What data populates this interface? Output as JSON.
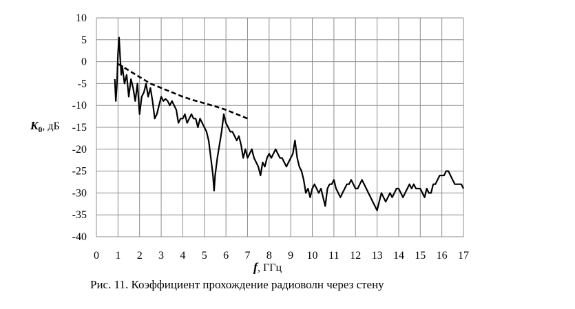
{
  "chart_data": {
    "type": "line",
    "xlabel": {
      "symbol": "f",
      "unit": ", ГГц"
    },
    "ylabel": {
      "symbol": "K",
      "subscript": "0",
      "unit": ", дБ"
    },
    "xlim": [
      0,
      17
    ],
    "ylim": [
      -40,
      10
    ],
    "x_ticks": [
      "0",
      "1",
      "2",
      "3",
      "4",
      "5",
      "6",
      "7",
      "8",
      "9",
      "10",
      "11",
      "12",
      "13",
      "14",
      "15",
      "16",
      "17"
    ],
    "y_ticks": [
      "10",
      "5",
      "0",
      "-5",
      "-10",
      "-15",
      "-20",
      "-25",
      "-30",
      "-35",
      "-40"
    ],
    "grid": true,
    "series": [
      {
        "style": "solid",
        "color": "#000000",
        "points": [
          [
            0.85,
            -4
          ],
          [
            0.9,
            -9
          ],
          [
            0.95,
            -5
          ],
          [
            1.0,
            2
          ],
          [
            1.05,
            5.5
          ],
          [
            1.1,
            1
          ],
          [
            1.15,
            -3
          ],
          [
            1.2,
            -1
          ],
          [
            1.3,
            -5
          ],
          [
            1.4,
            -3
          ],
          [
            1.5,
            -8
          ],
          [
            1.6,
            -4
          ],
          [
            1.7,
            -6
          ],
          [
            1.8,
            -9
          ],
          [
            1.9,
            -5
          ],
          [
            2.0,
            -12
          ],
          [
            2.1,
            -8
          ],
          [
            2.2,
            -7
          ],
          [
            2.3,
            -5
          ],
          [
            2.4,
            -8
          ],
          [
            2.5,
            -6
          ],
          [
            2.6,
            -9
          ],
          [
            2.7,
            -13
          ],
          [
            2.8,
            -12
          ],
          [
            2.9,
            -10
          ],
          [
            3.0,
            -8
          ],
          [
            3.1,
            -9
          ],
          [
            3.2,
            -8.5
          ],
          [
            3.3,
            -9
          ],
          [
            3.4,
            -10
          ],
          [
            3.5,
            -9
          ],
          [
            3.6,
            -10
          ],
          [
            3.7,
            -11
          ],
          [
            3.8,
            -14
          ],
          [
            3.9,
            -13
          ],
          [
            4.0,
            -13
          ],
          [
            4.1,
            -12
          ],
          [
            4.2,
            -14
          ],
          [
            4.3,
            -13
          ],
          [
            4.4,
            -12
          ],
          [
            4.5,
            -13
          ],
          [
            4.6,
            -13
          ],
          [
            4.7,
            -15
          ],
          [
            4.8,
            -13
          ],
          [
            4.9,
            -14
          ],
          [
            5.0,
            -15
          ],
          [
            5.1,
            -16
          ],
          [
            5.2,
            -18
          ],
          [
            5.3,
            -22
          ],
          [
            5.4,
            -26
          ],
          [
            5.45,
            -29.5
          ],
          [
            5.5,
            -26
          ],
          [
            5.6,
            -22
          ],
          [
            5.7,
            -19
          ],
          [
            5.8,
            -16
          ],
          [
            5.9,
            -12
          ],
          [
            6.0,
            -14
          ],
          [
            6.1,
            -15
          ],
          [
            6.2,
            -16
          ],
          [
            6.3,
            -16
          ],
          [
            6.4,
            -17
          ],
          [
            6.5,
            -18
          ],
          [
            6.6,
            -17
          ],
          [
            6.7,
            -19
          ],
          [
            6.8,
            -22
          ],
          [
            6.9,
            -20
          ],
          [
            7.0,
            -22
          ],
          [
            7.1,
            -21
          ],
          [
            7.2,
            -20
          ],
          [
            7.3,
            -22
          ],
          [
            7.4,
            -23
          ],
          [
            7.5,
            -24
          ],
          [
            7.6,
            -26
          ],
          [
            7.7,
            -23
          ],
          [
            7.8,
            -24
          ],
          [
            7.9,
            -22
          ],
          [
            8.0,
            -21
          ],
          [
            8.1,
            -22
          ],
          [
            8.2,
            -21
          ],
          [
            8.3,
            -20
          ],
          [
            8.4,
            -21
          ],
          [
            8.5,
            -22
          ],
          [
            8.6,
            -22
          ],
          [
            8.7,
            -23
          ],
          [
            8.8,
            -24
          ],
          [
            8.9,
            -23
          ],
          [
            9.0,
            -22
          ],
          [
            9.1,
            -21
          ],
          [
            9.2,
            -18
          ],
          [
            9.3,
            -22
          ],
          [
            9.4,
            -24
          ],
          [
            9.5,
            -25
          ],
          [
            9.6,
            -27
          ],
          [
            9.7,
            -30
          ],
          [
            9.8,
            -29
          ],
          [
            9.9,
            -31
          ],
          [
            10.0,
            -29
          ],
          [
            10.1,
            -28
          ],
          [
            10.2,
            -29
          ],
          [
            10.3,
            -30
          ],
          [
            10.4,
            -29
          ],
          [
            10.5,
            -31
          ],
          [
            10.6,
            -33
          ],
          [
            10.7,
            -29
          ],
          [
            10.8,
            -28
          ],
          [
            10.9,
            -28
          ],
          [
            11.0,
            -27
          ],
          [
            11.1,
            -29
          ],
          [
            11.2,
            -30
          ],
          [
            11.3,
            -31
          ],
          [
            11.4,
            -30
          ],
          [
            11.5,
            -29
          ],
          [
            11.6,
            -28
          ],
          [
            11.7,
            -28
          ],
          [
            11.8,
            -27
          ],
          [
            11.9,
            -28
          ],
          [
            12.0,
            -29
          ],
          [
            12.1,
            -29
          ],
          [
            12.2,
            -28
          ],
          [
            12.3,
            -27
          ],
          [
            12.4,
            -28
          ],
          [
            12.5,
            -29
          ],
          [
            12.6,
            -30
          ],
          [
            12.7,
            -31
          ],
          [
            12.8,
            -32
          ],
          [
            12.9,
            -33
          ],
          [
            13.0,
            -34
          ],
          [
            13.1,
            -32
          ],
          [
            13.2,
            -30
          ],
          [
            13.3,
            -31
          ],
          [
            13.4,
            -32
          ],
          [
            13.5,
            -31
          ],
          [
            13.6,
            -30
          ],
          [
            13.7,
            -31
          ],
          [
            13.8,
            -30
          ],
          [
            13.9,
            -29
          ],
          [
            14.0,
            -29
          ],
          [
            14.1,
            -30
          ],
          [
            14.2,
            -31
          ],
          [
            14.3,
            -30
          ],
          [
            14.4,
            -29
          ],
          [
            14.5,
            -28
          ],
          [
            14.6,
            -29
          ],
          [
            14.7,
            -28
          ],
          [
            14.8,
            -29
          ],
          [
            14.9,
            -29
          ],
          [
            15.0,
            -29
          ],
          [
            15.1,
            -30
          ],
          [
            15.2,
            -31
          ],
          [
            15.3,
            -29
          ],
          [
            15.4,
            -30
          ],
          [
            15.5,
            -30
          ],
          [
            15.6,
            -28
          ],
          [
            15.7,
            -28
          ],
          [
            15.8,
            -27
          ],
          [
            15.9,
            -26
          ],
          [
            16.0,
            -26
          ],
          [
            16.1,
            -26
          ],
          [
            16.2,
            -25
          ],
          [
            16.3,
            -25
          ],
          [
            16.4,
            -26
          ],
          [
            16.5,
            -27
          ],
          [
            16.6,
            -28
          ],
          [
            16.7,
            -28
          ],
          [
            16.8,
            -28
          ],
          [
            16.9,
            -28
          ],
          [
            17.0,
            -29
          ]
        ]
      },
      {
        "style": "dashed",
        "color": "#000000",
        "points": [
          [
            1.0,
            -0.5
          ],
          [
            1.5,
            -2
          ],
          [
            2.0,
            -3.5
          ],
          [
            2.5,
            -5
          ],
          [
            3.0,
            -6
          ],
          [
            3.5,
            -7
          ],
          [
            4.0,
            -8
          ],
          [
            4.5,
            -8.8
          ],
          [
            5.0,
            -9.5
          ],
          [
            5.5,
            -10.2
          ],
          [
            6.0,
            -11
          ],
          [
            6.5,
            -12
          ],
          [
            7.0,
            -13
          ]
        ]
      }
    ]
  },
  "caption": "Рис. 11. Коэффициент прохождение радиоволн через стену"
}
